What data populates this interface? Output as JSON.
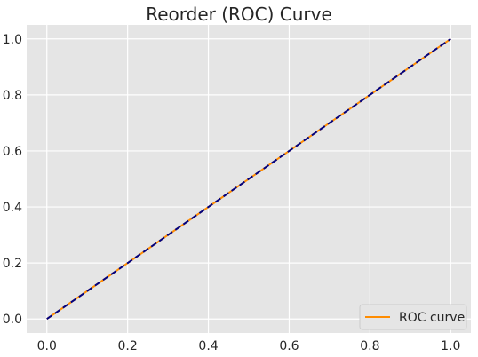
{
  "chart_data": {
    "type": "line",
    "title": "Reorder (ROC) Curve",
    "xlabel": "",
    "ylabel": "",
    "xlim": [
      -0.05,
      1.05
    ],
    "ylim": [
      -0.05,
      1.05
    ],
    "xticks": [
      0.0,
      0.2,
      0.4,
      0.6,
      0.8,
      1.0
    ],
    "yticks": [
      0.0,
      0.2,
      0.4,
      0.6,
      0.8,
      1.0
    ],
    "xtick_labels": [
      "0.0",
      "0.2",
      "0.4",
      "0.6",
      "0.8",
      "1.0"
    ],
    "ytick_labels": [
      "0.0",
      "0.2",
      "0.4",
      "0.6",
      "0.8",
      "1.0"
    ],
    "grid": true,
    "legend_position": "lower-right",
    "series": [
      {
        "name": "ROC curve",
        "style": "solid",
        "color": "#ff8c00",
        "in_legend": true,
        "x": [
          0.0,
          1.0
        ],
        "y": [
          0.0,
          1.0
        ]
      },
      {
        "name": "",
        "style": "dashed",
        "color": "#000080",
        "in_legend": false,
        "x": [
          0.0,
          1.0
        ],
        "y": [
          0.0,
          1.0
        ]
      }
    ]
  }
}
